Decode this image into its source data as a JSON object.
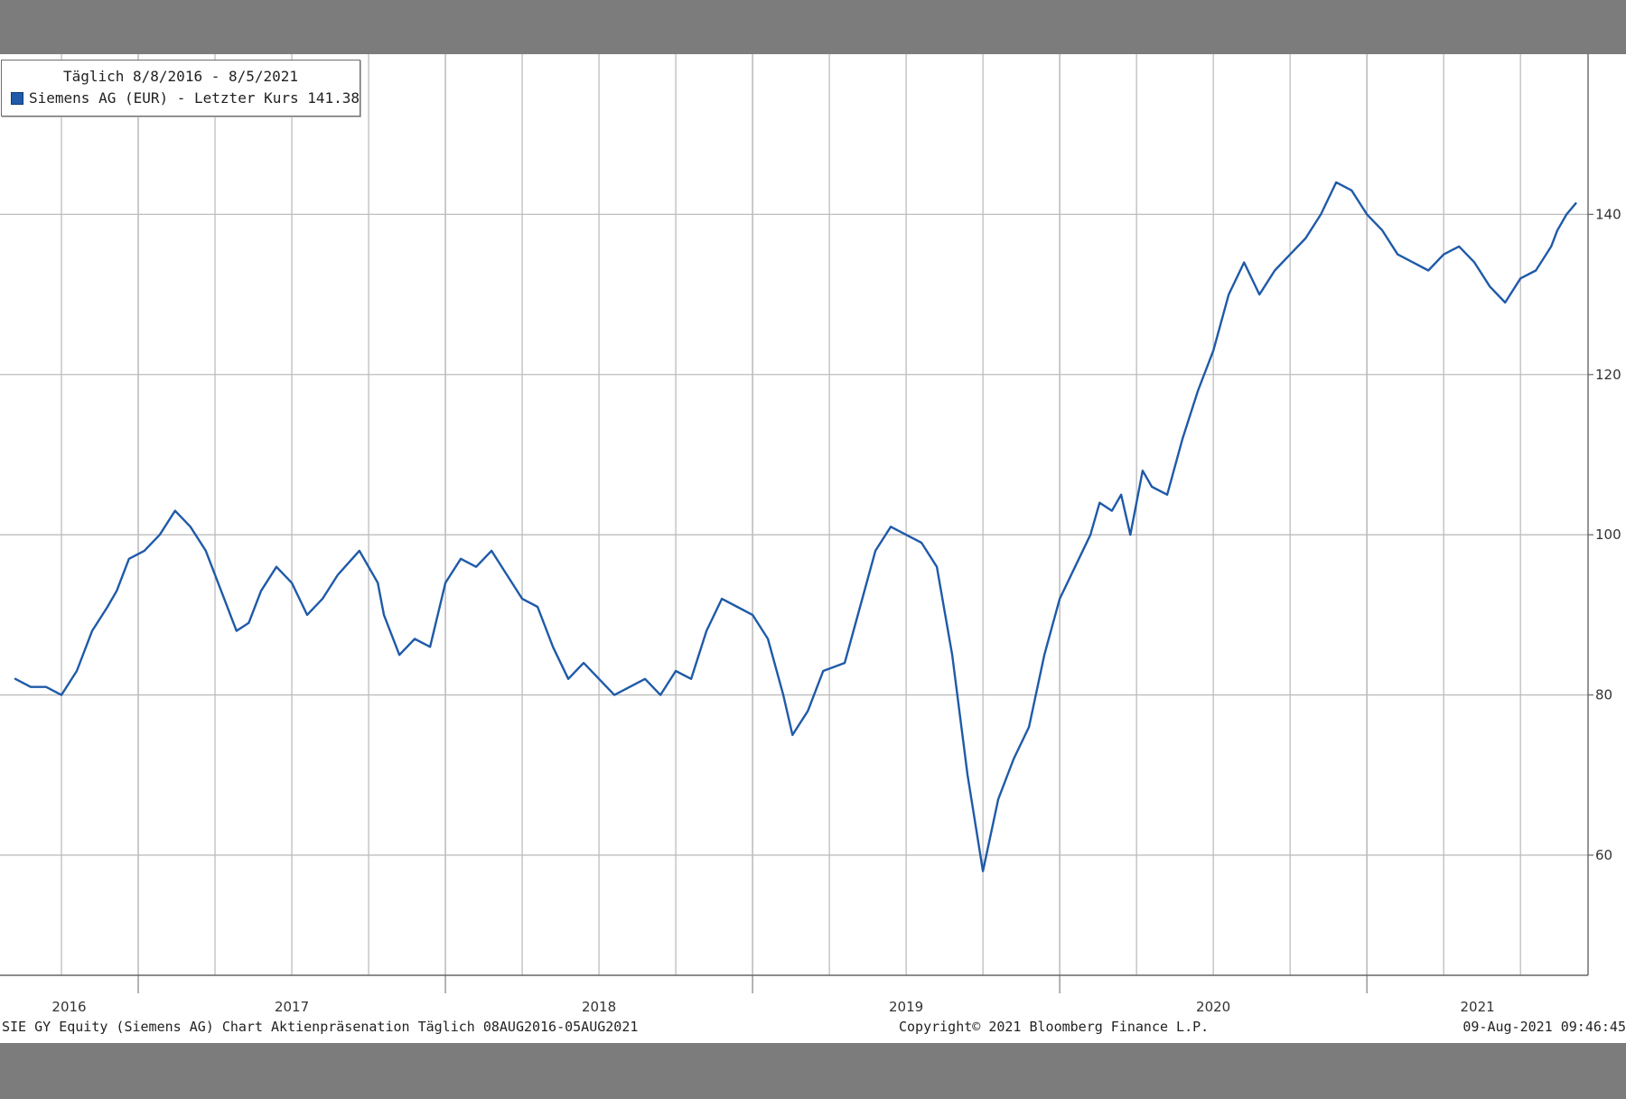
{
  "legend": {
    "title": "Täglich 8/8/2016 - 8/5/2021",
    "series_label": "Siemens AG (EUR) - Letzter Kurs 141.38"
  },
  "footer": {
    "left": "SIE GY Equity (Siemens AG) Chart Aktienpräsenation  Täglich 08AUG2016-05AUG2021",
    "center": "Copyright© 2021 Bloomberg Finance L.P.",
    "right": "09-Aug-2021 09:46:45"
  },
  "colors": {
    "line": "#1f5aa8",
    "grid": "#bdbdbd",
    "background": "#ffffff",
    "outer": "#7c7c7c"
  },
  "chart_data": {
    "type": "line",
    "title": "",
    "xlabel": "",
    "ylabel": "",
    "x_ticks": [
      "2016",
      "2017",
      "2018",
      "2019",
      "2020",
      "2021"
    ],
    "y_ticks": [
      60,
      80,
      100,
      120,
      140
    ],
    "ylim": [
      45,
      160
    ],
    "xlim": [
      2016.55,
      2021.72
    ],
    "grid": true,
    "legend_position": "top-left",
    "series": [
      {
        "name": "Siemens AG (EUR) - Letzter Kurs",
        "x": [
          2016.6,
          2016.65,
          2016.7,
          2016.75,
          2016.8,
          2016.85,
          2016.9,
          2016.93,
          2016.97,
          2017.02,
          2017.07,
          2017.12,
          2017.17,
          2017.22,
          2017.25,
          2017.28,
          2017.32,
          2017.36,
          2017.4,
          2017.45,
          2017.5,
          2017.55,
          2017.6,
          2017.65,
          2017.72,
          2017.78,
          2017.8,
          2017.85,
          2017.9,
          2017.95,
          2018.0,
          2018.05,
          2018.1,
          2018.15,
          2018.2,
          2018.25,
          2018.3,
          2018.35,
          2018.4,
          2018.45,
          2018.5,
          2018.55,
          2018.6,
          2018.65,
          2018.7,
          2018.75,
          2018.8,
          2018.85,
          2018.9,
          2018.95,
          2019.0,
          2019.05,
          2019.1,
          2019.13,
          2019.18,
          2019.23,
          2019.3,
          2019.35,
          2019.4,
          2019.45,
          2019.5,
          2019.55,
          2019.6,
          2019.65,
          2019.7,
          2019.75,
          2019.8,
          2019.85,
          2019.9,
          2019.95,
          2020.0,
          2020.05,
          2020.1,
          2020.13,
          2020.17,
          2020.2,
          2020.23,
          2020.27,
          2020.3,
          2020.35,
          2020.4,
          2020.45,
          2020.5,
          2020.55,
          2020.6,
          2020.65,
          2020.7,
          2020.75,
          2020.8,
          2020.85,
          2020.9,
          2020.95,
          2021.0,
          2021.05,
          2021.1,
          2021.15,
          2021.2,
          2021.25,
          2021.3,
          2021.35,
          2021.4,
          2021.45,
          2021.5,
          2021.55,
          2021.6,
          2021.62,
          2021.65,
          2021.68
        ],
        "values": [
          82,
          81,
          81,
          80,
          83,
          88,
          91,
          93,
          97,
          98,
          100,
          103,
          101,
          98,
          95,
          92,
          88,
          89,
          93,
          96,
          94,
          90,
          92,
          95,
          98,
          94,
          90,
          85,
          87,
          86,
          94,
          97,
          96,
          98,
          95,
          92,
          91,
          86,
          82,
          84,
          82,
          80,
          81,
          82,
          80,
          83,
          82,
          88,
          92,
          91,
          90,
          87,
          80,
          75,
          78,
          83,
          84,
          91,
          98,
          101,
          100,
          99,
          96,
          85,
          70,
          58,
          67,
          72,
          76,
          85,
          92,
          96,
          100,
          104,
          103,
          105,
          100,
          108,
          106,
          105,
          112,
          118,
          123,
          130,
          134,
          130,
          133,
          135,
          137,
          140,
          144,
          143,
          140,
          138,
          135,
          134,
          133,
          135,
          136,
          134,
          131,
          129,
          132,
          133,
          136,
          138,
          140,
          141.38
        ]
      }
    ]
  }
}
